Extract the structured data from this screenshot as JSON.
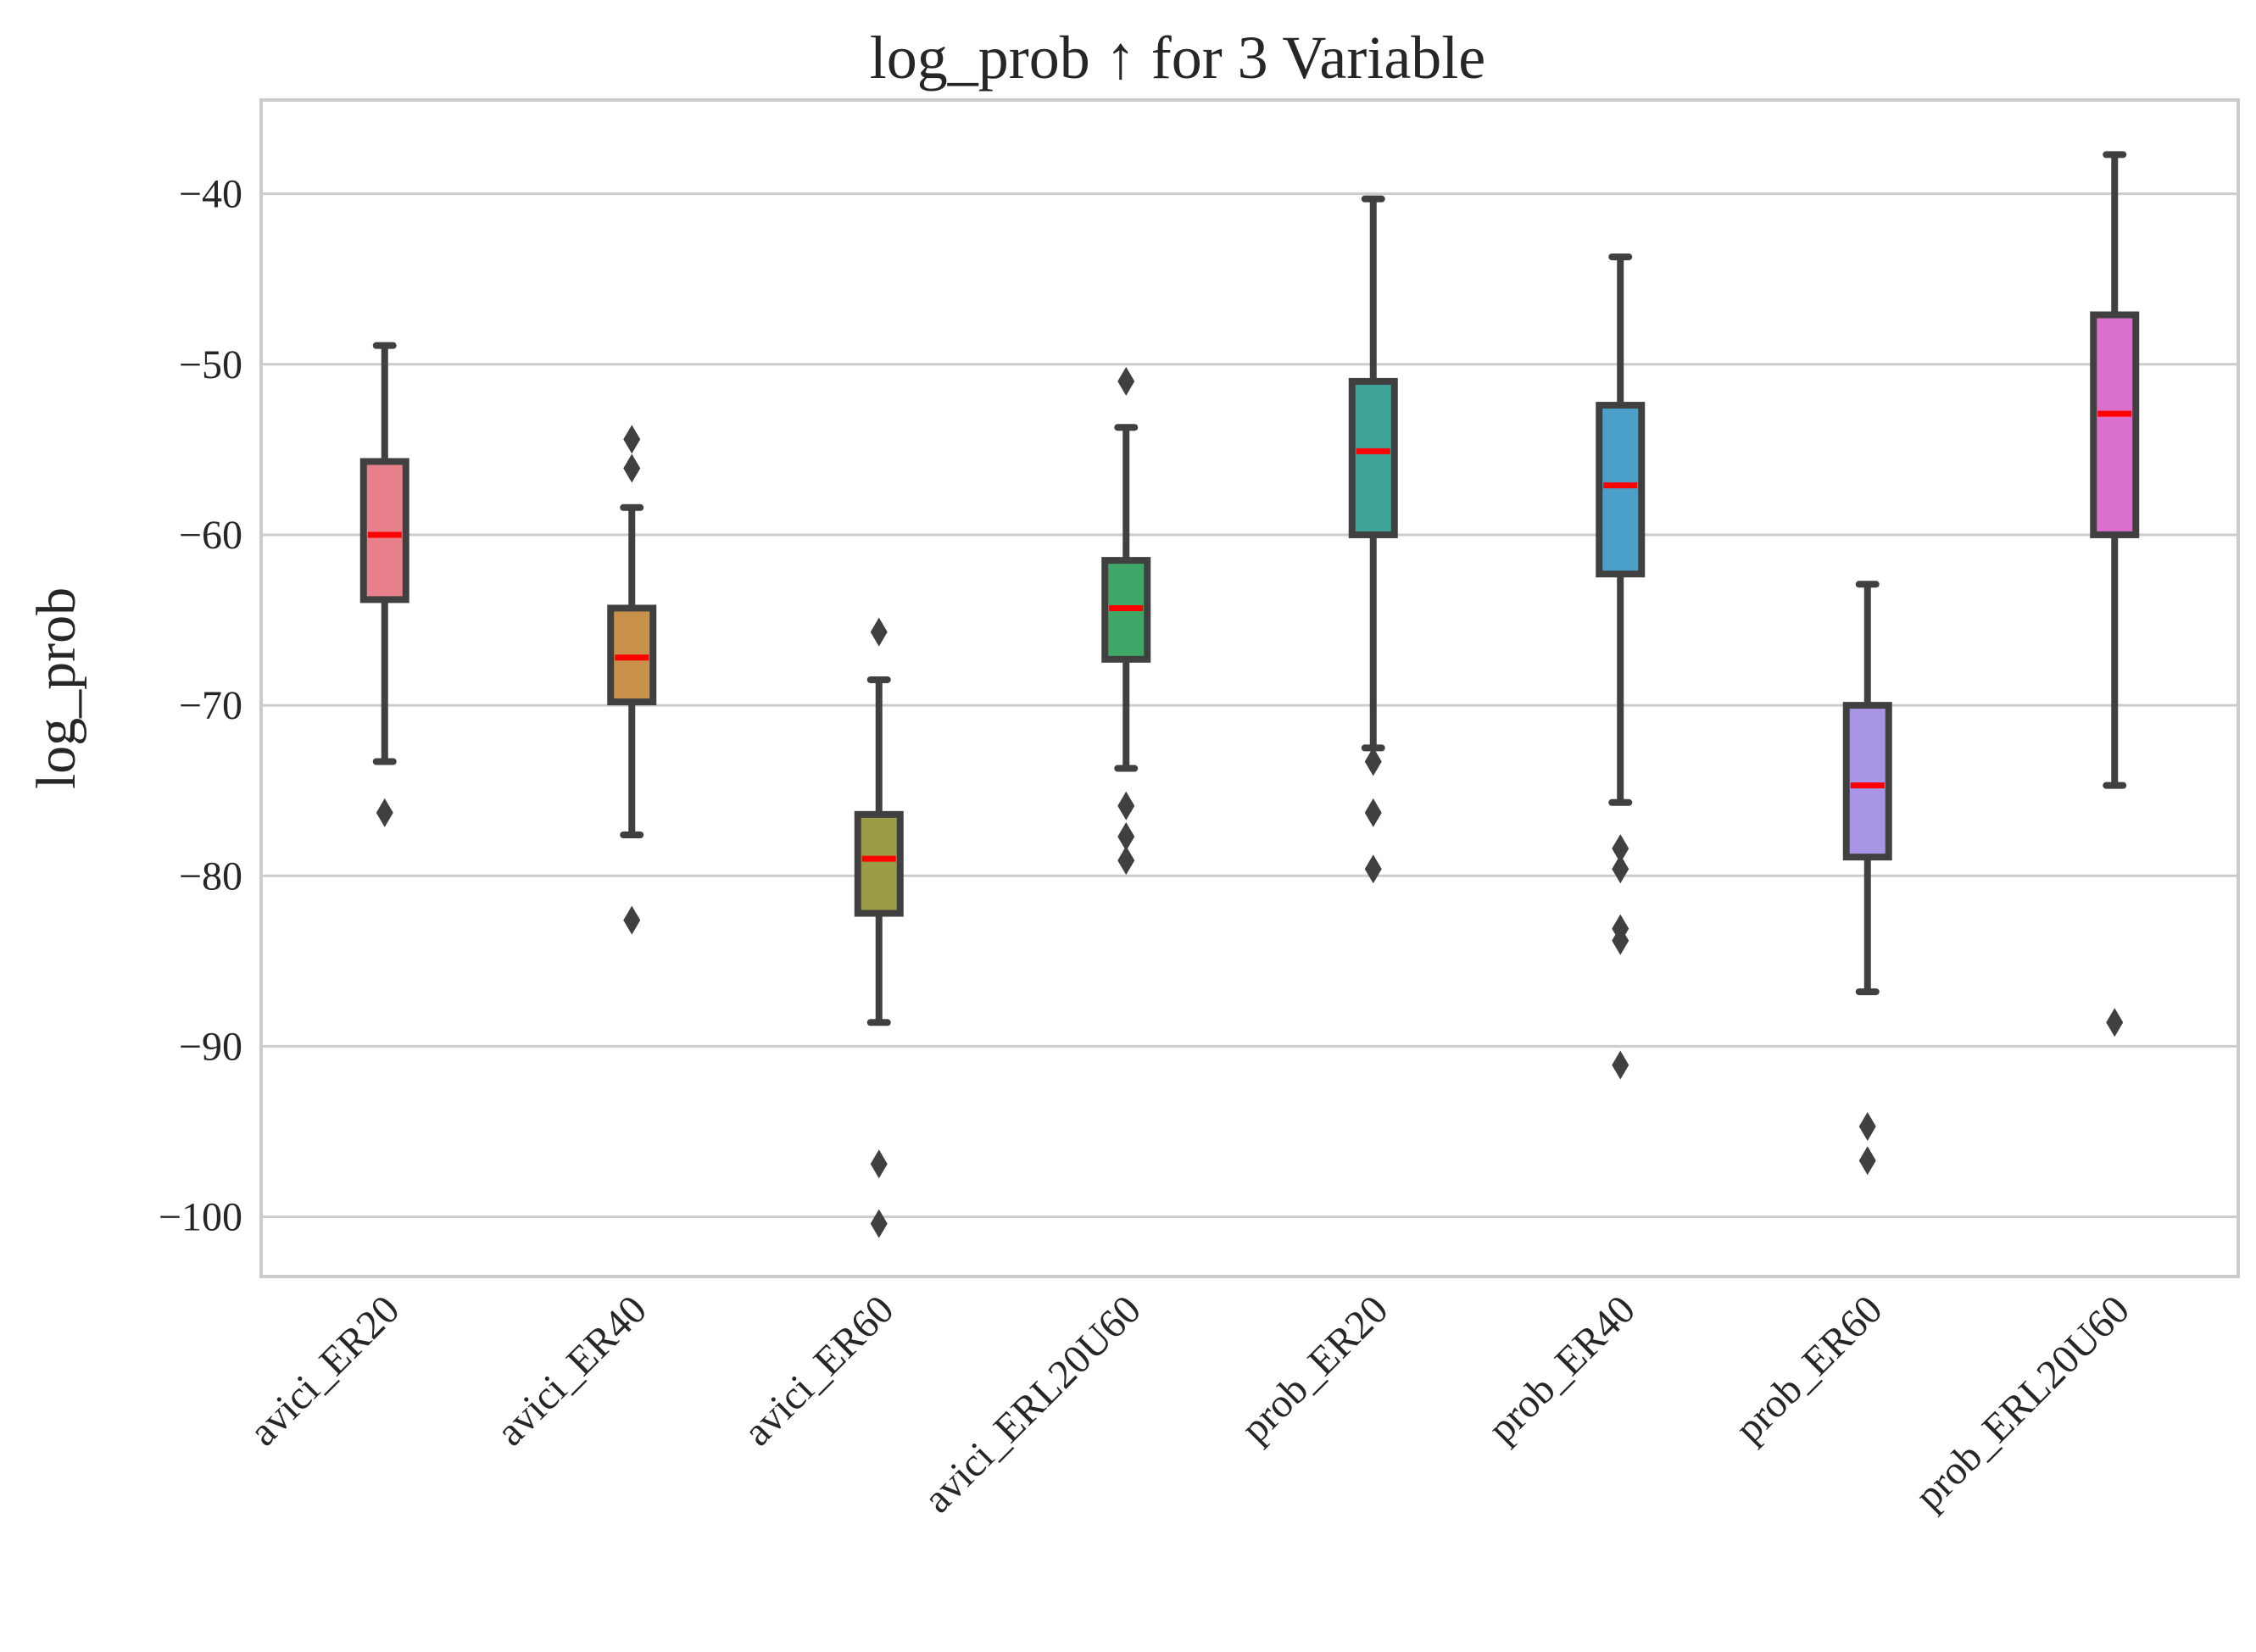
{
  "chart_data": {
    "type": "box",
    "title": "log_prob ↑ for 3 Variable",
    "xlabel": "",
    "ylabel": "log_prob",
    "ylim": [
      -103.5,
      -34.5
    ],
    "yticks": [
      -40,
      -50,
      -60,
      -70,
      -80,
      -90,
      -100
    ],
    "ytick_labels": [
      "−40",
      "−50",
      "−60",
      "−70",
      "−80",
      "−90",
      "−100"
    ],
    "grid": true,
    "colors": {
      "box_edge": "#404040",
      "median": "#ff0000",
      "grid": "#cccccc",
      "frame": "#cccccc"
    },
    "categories": [
      "avici_ER20",
      "avici_ER40",
      "avici_ER60",
      "avici_ERL20U60",
      "prob_ER20",
      "prob_ER40",
      "prob_ER60",
      "prob_ERL20U60"
    ],
    "boxes": [
      {
        "name": "avici_ER20",
        "color": "#e8808c",
        "whislo": -73.3,
        "q1": -63.8,
        "median": -60.0,
        "q3": -55.7,
        "whishi": -48.9,
        "fliers": [
          -76.3
        ]
      },
      {
        "name": "avici_ER40",
        "color": "#c8924a",
        "whislo": -77.6,
        "q1": -69.8,
        "median": -67.2,
        "q3": -64.3,
        "whishi": -58.4,
        "fliers": [
          -54.4,
          -56.1,
          -82.6
        ]
      },
      {
        "name": "avici_ER60",
        "color": "#9a9c47",
        "whislo": -88.6,
        "q1": -82.2,
        "median": -79.0,
        "q3": -76.4,
        "whishi": -68.5,
        "fliers": [
          -65.7,
          -96.9,
          -100.4
        ]
      },
      {
        "name": "avici_ERL20U60",
        "color": "#3fa869",
        "whislo": -73.7,
        "q1": -67.3,
        "median": -64.3,
        "q3": -61.5,
        "whishi": -53.7,
        "fliers": [
          -51.0,
          -75.9,
          -77.7,
          -79.1
        ]
      },
      {
        "name": "prob_ER20",
        "color": "#3ea49a",
        "whislo": -72.5,
        "q1": -60.0,
        "median": -55.1,
        "q3": -51.0,
        "whishi": -40.3,
        "fliers": [
          -73.3,
          -76.3,
          -79.6
        ]
      },
      {
        "name": "prob_ER40",
        "color": "#4aa0c8",
        "whislo": -75.7,
        "q1": -62.3,
        "median": -57.1,
        "q3": -52.4,
        "whishi": -43.7,
        "fliers": [
          -78.4,
          -79.6,
          -83.1,
          -83.8,
          -91.1
        ]
      },
      {
        "name": "prob_ER60",
        "color": "#a895e6",
        "whislo": -86.8,
        "q1": -78.9,
        "median": -74.7,
        "q3": -70.0,
        "whishi": -62.9,
        "fliers": [
          -94.7,
          -96.7
        ]
      },
      {
        "name": "prob_ERL20U60",
        "color": "#db6fcd",
        "whislo": -74.7,
        "q1": -60.0,
        "median": -52.9,
        "q3": -47.1,
        "whishi": -37.7,
        "fliers": [
          -88.6
        ]
      }
    ]
  }
}
